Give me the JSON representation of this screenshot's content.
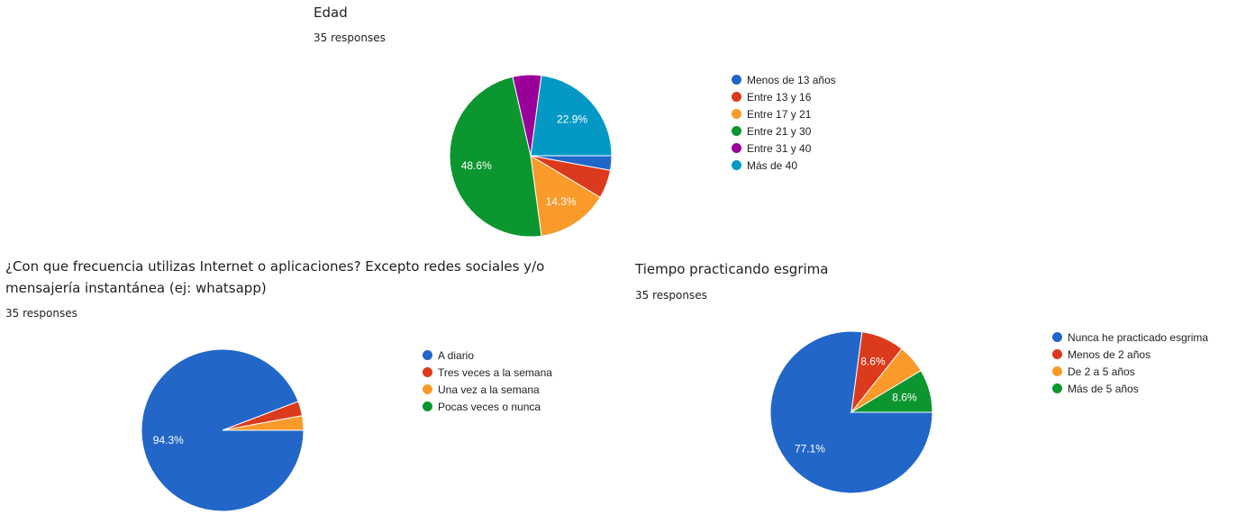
{
  "chart_data": [
    {
      "type": "pie",
      "title": "Edad",
      "subtitle": "35 responses",
      "legend_position": "right",
      "slices": [
        {
          "label": "Menos de 13 años",
          "value": 2.9,
          "color": "#2266c8",
          "display": ""
        },
        {
          "label": "Entre 13 y 16",
          "value": 5.7,
          "color": "#dc3a1c",
          "display": ""
        },
        {
          "label": "Entre 17 y 21",
          "value": 14.3,
          "color": "#fa9a2b",
          "display": "14.3%"
        },
        {
          "label": "Entre 21 y 30",
          "value": 48.6,
          "color": "#0c9630",
          "display": "48.6%"
        },
        {
          "label": "Entre 31 y 40",
          "value": 5.7,
          "color": "#990099",
          "display": ""
        },
        {
          "label": "Más de 40",
          "value": 22.9,
          "color": "#0399c4",
          "display": "22.9%"
        }
      ]
    },
    {
      "type": "pie",
      "title": "¿Con que frecuencia utilizas Internet o aplicaciones? Excepto redes sociales y/o mensajería instantánea (ej: whatsapp)",
      "subtitle": "35 responses",
      "legend_position": "right",
      "slices": [
        {
          "label": "A diario",
          "value": 94.3,
          "color": "#2266c8",
          "display": "94.3%"
        },
        {
          "label": "Tres veces a la semana",
          "value": 2.9,
          "color": "#dc3a1c",
          "display": ""
        },
        {
          "label": "Una vez a la semana",
          "value": 2.9,
          "color": "#fa9a2b",
          "display": ""
        },
        {
          "label": "Pocas veces o nunca",
          "value": 0,
          "color": "#0c9630",
          "display": ""
        }
      ]
    },
    {
      "type": "pie",
      "title": "Tiempo practicando esgrima",
      "subtitle": "35 responses",
      "legend_position": "right",
      "slices": [
        {
          "label": "Nunca he practicado esgrima",
          "value": 77.1,
          "color": "#2266c8",
          "display": "77.1%"
        },
        {
          "label": "Menos de 2 años",
          "value": 8.6,
          "color": "#dc3a1c",
          "display": "8.6%"
        },
        {
          "label": "De 2 a 5 años",
          "value": 5.7,
          "color": "#fa9a2b",
          "display": ""
        },
        {
          "label": "Más de 5 años",
          "value": 8.6,
          "color": "#0c9630",
          "display": "8.6%"
        }
      ]
    }
  ]
}
